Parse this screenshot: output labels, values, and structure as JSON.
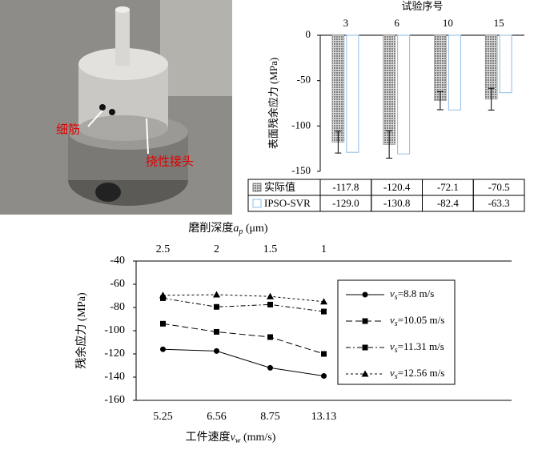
{
  "photo": {
    "labels": [
      "细筋",
      "挠性接头"
    ]
  },
  "chart_data": [
    {
      "type": "bar",
      "x_label": "试验序号",
      "y_label": "表面残余应力 (MPa)",
      "categories": [
        "3",
        "6",
        "10",
        "15"
      ],
      "ylim": [
        -150,
        0
      ],
      "yticks": [
        -150,
        -100,
        -50,
        0
      ],
      "series": [
        {
          "name": "实际值",
          "color": "#7f7f7f",
          "values": [
            -117.8,
            -120.4,
            -72.1,
            -70.5
          ],
          "errors": [
            12,
            15,
            10,
            12
          ]
        },
        {
          "name": "IPSO-SVR",
          "color": "#8fbce6",
          "values": [
            -129.0,
            -130.8,
            -82.4,
            -63.3
          ],
          "value_labels": [
            "-129.0",
            "-130.8",
            "-82.4",
            "-63.3"
          ]
        }
      ]
    },
    {
      "type": "line",
      "x_label": "工件速度vw (mm/s)",
      "x2_label": "磨削深度ap (μm)",
      "y_label": "残余应力 (MPa)",
      "categories": [
        "5.25",
        "6.56",
        "8.75",
        "13.13"
      ],
      "x2_categories": [
        "2.5",
        "2",
        "1.5",
        "1"
      ],
      "ylim": [
        -160,
        -40
      ],
      "yticks": [
        -160,
        -140,
        -120,
        -100,
        -80,
        -60,
        -40
      ],
      "series": [
        {
          "name": "vs=8.8 m/s",
          "color": "#000000",
          "marker": "circle",
          "dash": "solid",
          "values": [
            -116,
            -117.5,
            -132,
            -139
          ]
        },
        {
          "name": "vs=10.05 m/s",
          "color": "#000000",
          "marker": "square",
          "dash": "dashed",
          "values": [
            -94,
            -101,
            -105.5,
            -120
          ]
        },
        {
          "name": "vs=11.31 m/s",
          "color": "#000000",
          "marker": "square",
          "dash": "dashdot",
          "values": [
            -72,
            -79.5,
            -77.5,
            -83.5
          ]
        },
        {
          "name": "vs=12.56 m/s",
          "color": "#000000",
          "marker": "triangle",
          "dash": "dotted",
          "values": [
            -69.5,
            -69,
            -70.5,
            -75
          ]
        }
      ]
    }
  ]
}
